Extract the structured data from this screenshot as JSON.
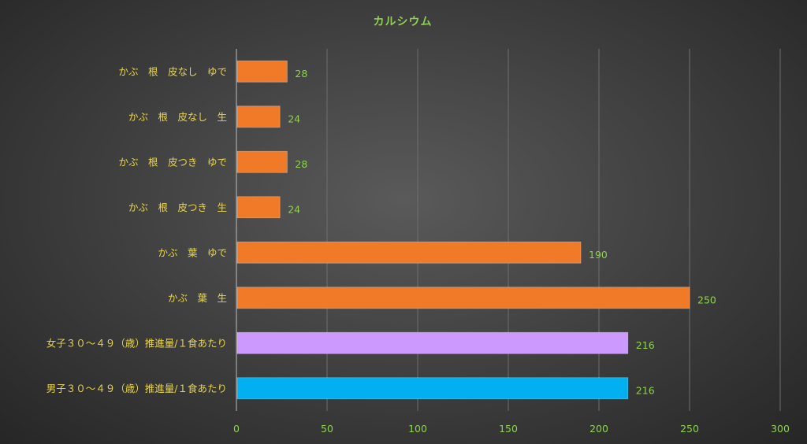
{
  "chart_data": {
    "type": "bar",
    "orientation": "horizontal",
    "title": "カルシウム",
    "categories": [
      "かぶ　根　皮なし　ゆで",
      "かぶ　根　皮なし　生",
      "かぶ　根　皮つき　ゆで",
      "かぶ　根　皮つき　生",
      "かぶ　葉　ゆで",
      "かぶ　葉　生",
      "女子３０～４９（歳）推進量/１食あたり",
      "男子３０～４９（歳）推進量/１食あたり"
    ],
    "values": [
      28,
      24,
      28,
      24,
      190,
      250,
      216,
      216
    ],
    "data_labels": [
      "28",
      "24",
      "28",
      "24",
      "190",
      "250",
      "216",
      "216"
    ],
    "bar_colors": [
      "#f07a28",
      "#f07a28",
      "#f07a28",
      "#f07a28",
      "#f07a28",
      "#f07a28",
      "#cc99ff",
      "#00b0f0"
    ],
    "xlim": [
      0,
      300
    ],
    "x_ticks": [
      0,
      50,
      100,
      150,
      200,
      250,
      300
    ],
    "x_tick_labels": [
      "0",
      "50",
      "100",
      "150",
      "200",
      "250",
      "300"
    ],
    "grid": true,
    "legend": "none",
    "xlabel": "",
    "ylabel": ""
  },
  "colors": {
    "title": "#8fd14f",
    "category_text": "#e8d44d",
    "value_text": "#8fd14f",
    "gridline": "#6e6e6e"
  }
}
